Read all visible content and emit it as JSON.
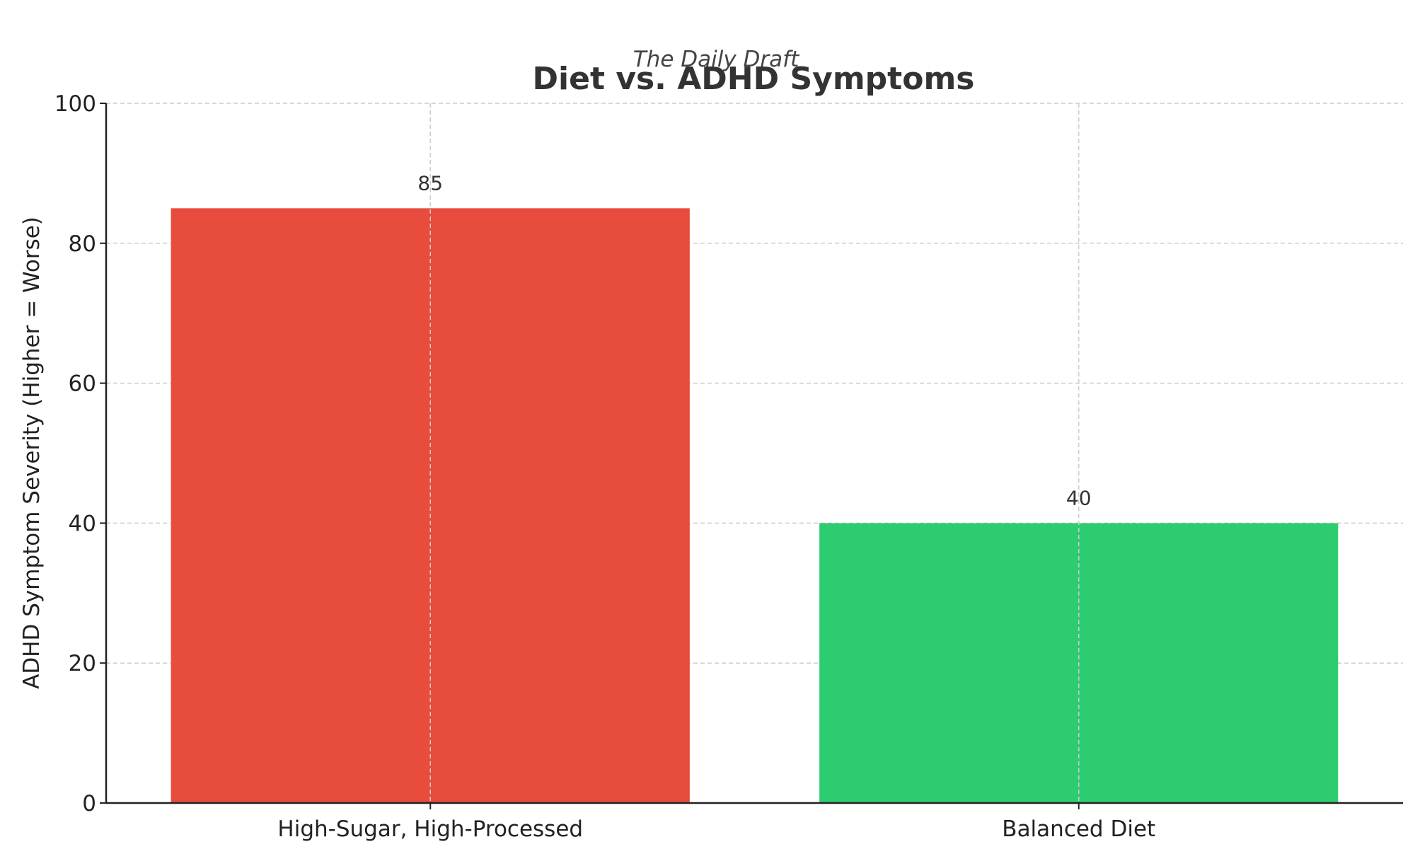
{
  "chart_data": {
    "type": "bar",
    "subtitle": "The Daily Draft",
    "title": "Diet vs. ADHD Symptoms",
    "xlabel": "",
    "ylabel": "ADHD Symptom Severity (Higher = Worse)",
    "categories": [
      "High-Sugar, High-Processed",
      "Balanced Diet"
    ],
    "values": [
      85,
      40
    ],
    "value_labels": [
      "85",
      "40"
    ],
    "bar_colors": [
      "#e74c3c",
      "#2ecc71"
    ],
    "ylim": [
      0,
      100
    ],
    "yticks": [
      0,
      20,
      40,
      60,
      80,
      100
    ],
    "ytick_labels": [
      "0",
      "20",
      "40",
      "60",
      "80",
      "100"
    ],
    "grid": true
  }
}
